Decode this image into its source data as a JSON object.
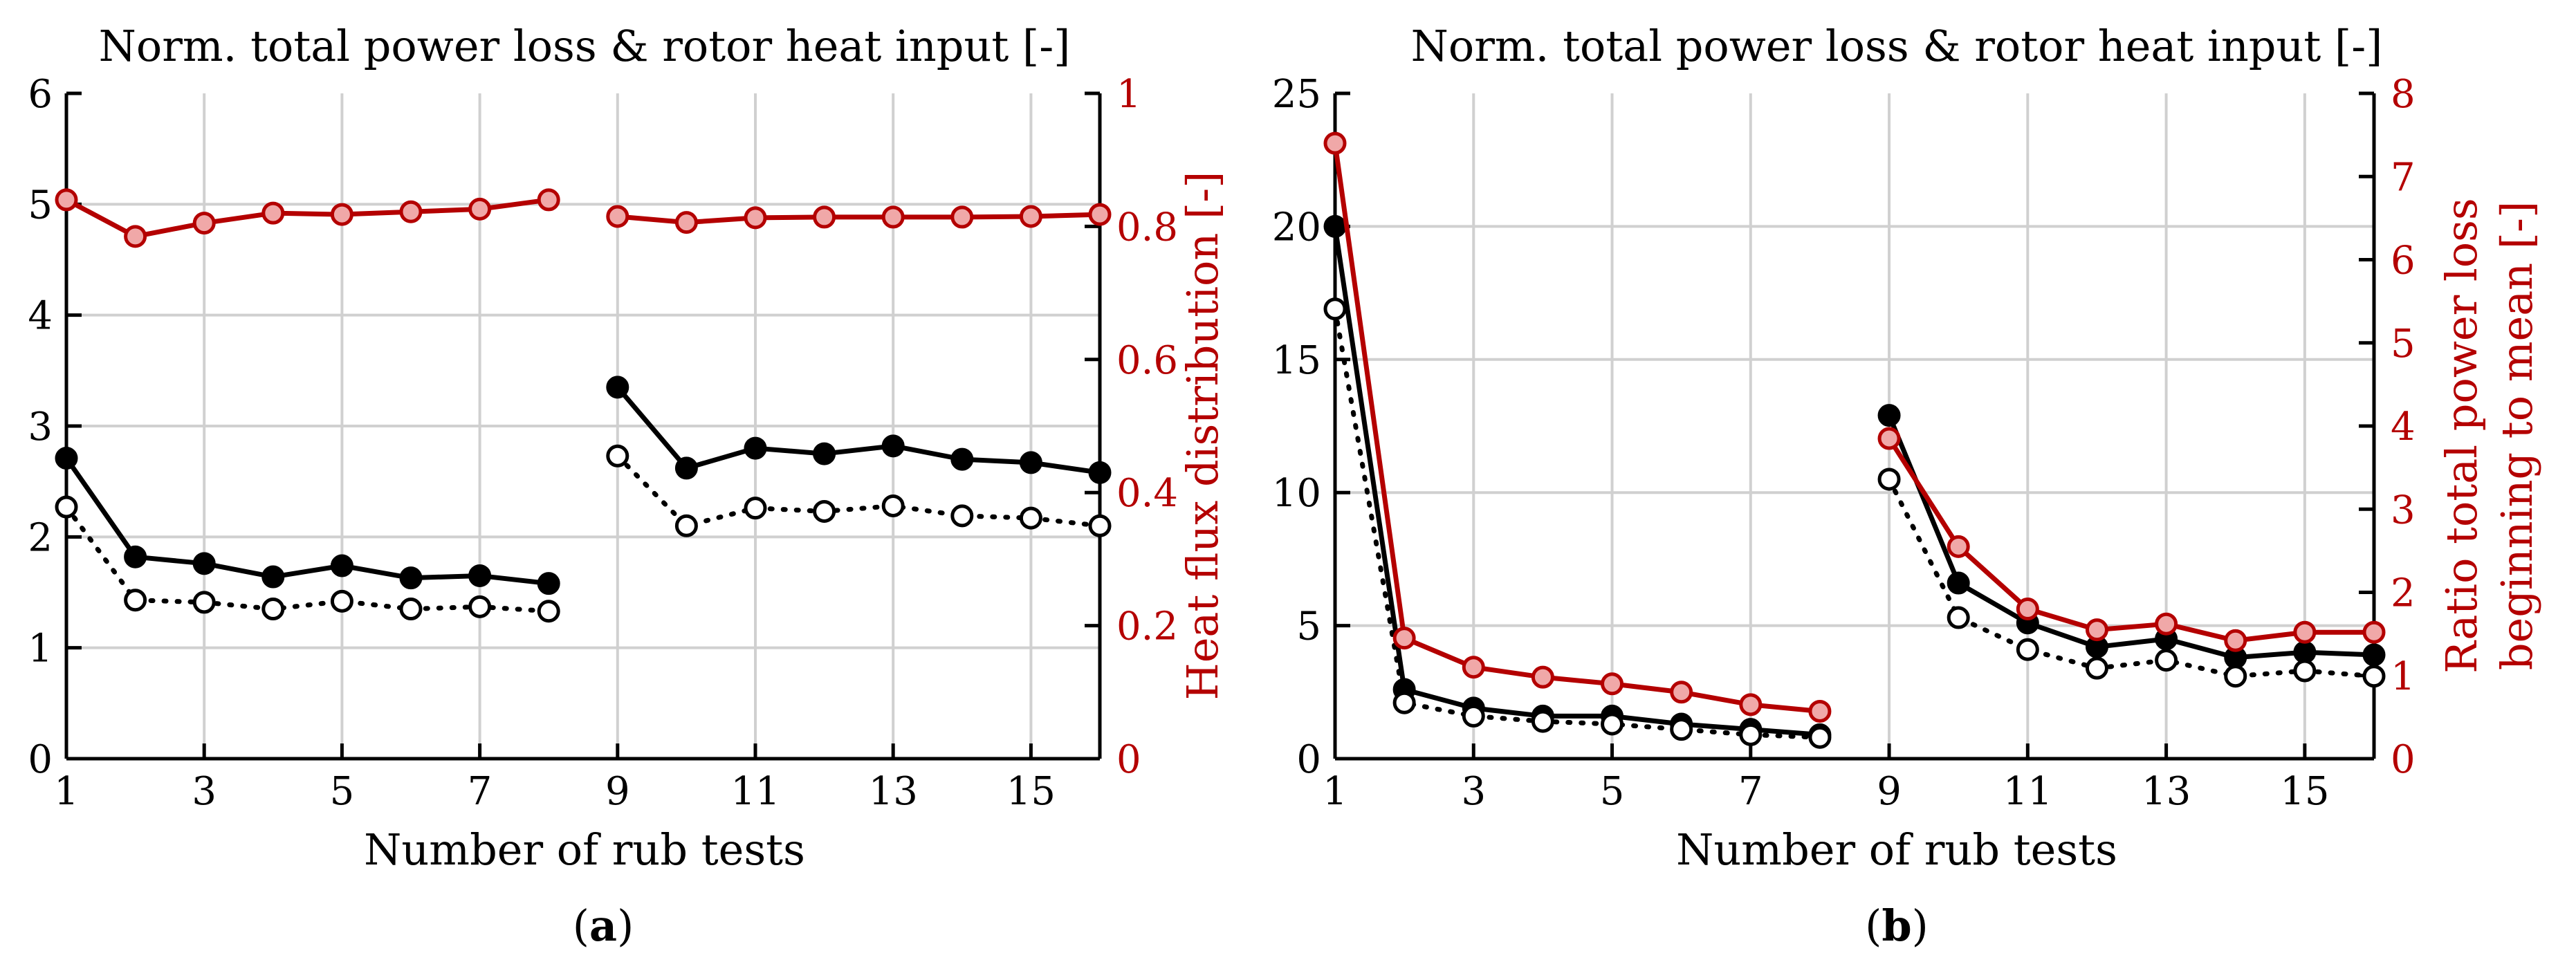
{
  "colors": {
    "black": "#000000",
    "red": "#b40000",
    "red_fill": "#f0a8a8",
    "grid": "#d0d0d0"
  },
  "chart_data": [
    {
      "id": "a",
      "type": "line",
      "panel_label": "a",
      "title": "Norm. total power loss & rotor heat input [-]",
      "xlabel": "Number of rub tests",
      "ylabel_right": "Heat flux distribution [-]",
      "xlim": [
        1,
        16
      ],
      "xticks": [
        1,
        3,
        5,
        7,
        9,
        11,
        13,
        15
      ],
      "xgrid": [
        3,
        5,
        7,
        9,
        11,
        13,
        15
      ],
      "ylim_left": [
        0,
        6
      ],
      "yticks_left": [
        0,
        1,
        2,
        3,
        4,
        5,
        6
      ],
      "ylim_right": [
        0,
        1
      ],
      "yticks_right": [
        0,
        0.2,
        0.4,
        0.6,
        0.8,
        1
      ],
      "ytick_labels_right": [
        "0",
        "0.2",
        "0.4",
        "0.6",
        "0.8",
        "1"
      ],
      "segments": [
        [
          1,
          8
        ],
        [
          9,
          16
        ]
      ],
      "series": [
        {
          "name": "Norm. total power loss",
          "axis": "left",
          "style": "solid-filled-black",
          "x": [
            1,
            2,
            3,
            4,
            5,
            6,
            7,
            8,
            9,
            10,
            11,
            12,
            13,
            14,
            15,
            16
          ],
          "values": [
            2.71,
            1.82,
            1.76,
            1.64,
            1.74,
            1.63,
            1.65,
            1.58,
            3.35,
            2.62,
            2.8,
            2.75,
            2.82,
            2.7,
            2.67,
            2.58
          ]
        },
        {
          "name": "Norm. rotor heat input",
          "axis": "left",
          "style": "dotted-open-black",
          "x": [
            1,
            2,
            3,
            4,
            5,
            6,
            7,
            8,
            9,
            10,
            11,
            12,
            13,
            14,
            15,
            16
          ],
          "values": [
            2.27,
            1.43,
            1.41,
            1.35,
            1.42,
            1.35,
            1.37,
            1.33,
            2.73,
            2.1,
            2.26,
            2.23,
            2.28,
            2.19,
            2.17,
            2.1
          ]
        },
        {
          "name": "Heat flux distribution",
          "axis": "right",
          "style": "solid-red",
          "x": [
            1,
            2,
            3,
            4,
            5,
            6,
            7,
            8,
            9,
            10,
            11,
            12,
            13,
            14,
            15,
            16
          ],
          "values": [
            0.84,
            0.785,
            0.805,
            0.82,
            0.818,
            0.822,
            0.826,
            0.84,
            0.815,
            0.806,
            0.813,
            0.814,
            0.814,
            0.814,
            0.815,
            0.818
          ]
        }
      ]
    },
    {
      "id": "b",
      "type": "line",
      "panel_label": "b",
      "title": "Norm. total power loss & rotor heat input [-]",
      "xlabel": "Number of rub tests",
      "ylabel_right": [
        "Ratio total power loss",
        "beginning to mean [-]"
      ],
      "xlim": [
        1,
        16
      ],
      "xticks": [
        1,
        3,
        5,
        7,
        9,
        11,
        13,
        15
      ],
      "xgrid": [
        3,
        5,
        7,
        9,
        11,
        13,
        15
      ],
      "ylim_left": [
        0,
        25
      ],
      "yticks_left": [
        0,
        5,
        10,
        15,
        20,
        25
      ],
      "ylim_right": [
        0,
        8
      ],
      "yticks_right": [
        0,
        1,
        2,
        3,
        4,
        5,
        6,
        7,
        8
      ],
      "ytick_labels_right": [
        "0",
        "1",
        "2",
        "3",
        "4",
        "5",
        "6",
        "7",
        "8"
      ],
      "segments": [
        [
          1,
          8
        ],
        [
          9,
          16
        ]
      ],
      "series": [
        {
          "name": "Norm. total power loss",
          "axis": "left",
          "style": "solid-filled-black",
          "x": [
            1,
            2,
            3,
            4,
            5,
            6,
            7,
            8,
            9,
            10,
            11,
            12,
            13,
            14,
            15,
            16
          ],
          "values": [
            20.0,
            2.6,
            1.9,
            1.6,
            1.6,
            1.3,
            1.1,
            0.9,
            12.9,
            6.6,
            5.1,
            4.2,
            4.5,
            3.8,
            4.0,
            3.9
          ]
        },
        {
          "name": "Norm. rotor heat input",
          "axis": "left",
          "style": "dotted-open-black",
          "x": [
            1,
            2,
            3,
            4,
            5,
            6,
            7,
            8,
            9,
            10,
            11,
            12,
            13,
            14,
            15,
            16
          ],
          "values": [
            16.9,
            2.1,
            1.6,
            1.4,
            1.3,
            1.1,
            0.9,
            0.8,
            10.5,
            5.3,
            4.1,
            3.4,
            3.7,
            3.1,
            3.3,
            3.1
          ]
        },
        {
          "name": "Ratio total power loss beginning to mean",
          "axis": "right",
          "style": "solid-red",
          "x": [
            1,
            2,
            3,
            4,
            5,
            6,
            7,
            8,
            9,
            10,
            11,
            12,
            13,
            14,
            15,
            16
          ],
          "values": [
            7.4,
            1.45,
            1.1,
            0.98,
            0.9,
            0.8,
            0.65,
            0.57,
            3.85,
            2.55,
            1.8,
            1.55,
            1.62,
            1.42,
            1.52,
            1.52
          ]
        }
      ]
    }
  ]
}
